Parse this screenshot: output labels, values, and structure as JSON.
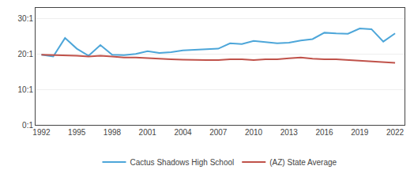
{
  "chart_data": {
    "type": "line",
    "x": [
      1992,
      1993,
      1994,
      1995,
      1996,
      1997,
      1998,
      1999,
      2000,
      2001,
      2002,
      2003,
      2004,
      2005,
      2006,
      2007,
      2008,
      2009,
      2010,
      2011,
      2012,
      2013,
      2014,
      2015,
      2016,
      2017,
      2018,
      2019,
      2020,
      2021,
      2022
    ],
    "series": [
      {
        "name": "Cactus Shadows High School",
        "color": "#4da6d9",
        "values": [
          19.8,
          19.3,
          24.5,
          21.5,
          19.5,
          22.5,
          19.8,
          19.7,
          20.0,
          20.8,
          20.3,
          20.5,
          21.0,
          21.2,
          21.3,
          21.5,
          23.0,
          22.8,
          23.7,
          23.3,
          23.0,
          23.2,
          23.8,
          24.2,
          26.0,
          25.8,
          25.7,
          27.2,
          27.0,
          23.5,
          25.8
        ]
      },
      {
        "name": "(AZ) State Average",
        "color": "#c0524a",
        "values": [
          19.8,
          19.7,
          19.7,
          19.5,
          19.3,
          19.5,
          19.3,
          19.0,
          19.0,
          18.8,
          18.7,
          18.5,
          18.4,
          18.3,
          18.3,
          18.3,
          18.5,
          18.5,
          18.3,
          18.5,
          18.5,
          18.8,
          19.0,
          18.7,
          18.5,
          18.5,
          18.3,
          18.2,
          18.0,
          17.8,
          17.5
        ]
      }
    ],
    "xlim": [
      1991.5,
      2022.8
    ],
    "xticks": [
      1992,
      1995,
      1998,
      2001,
      2004,
      2007,
      2010,
      2013,
      2016,
      2019,
      2022
    ],
    "ylim": [
      0,
      33
    ],
    "yticks": [
      {
        "value": 0,
        "label": "0:1"
      },
      {
        "value": 10,
        "label": "10:1"
      },
      {
        "value": 20,
        "label": "20:1"
      },
      {
        "value": 30,
        "label": "30:1"
      }
    ],
    "grid": "y",
    "legend": "bottom"
  }
}
